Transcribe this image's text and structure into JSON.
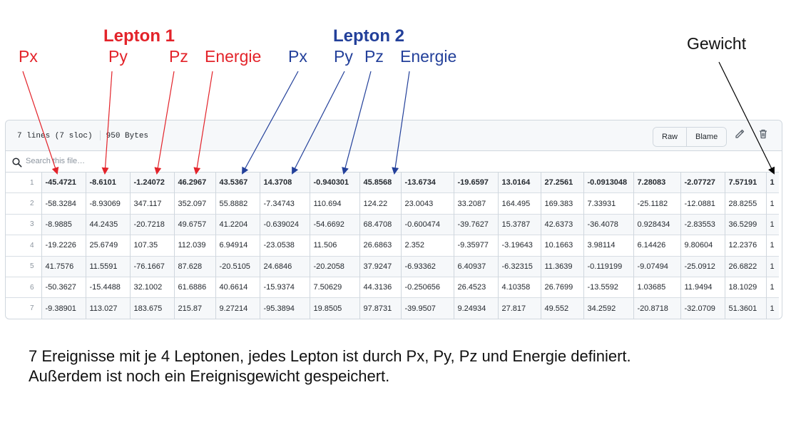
{
  "annotations": {
    "lepton1_title": "Lepton 1",
    "lepton2_title": "Lepton 2",
    "weight_label": "Gewicht",
    "lepton1_labels": [
      "Px",
      "Py",
      "Pz",
      "Energie"
    ],
    "lepton2_labels": [
      "Px",
      "Py",
      "Pz",
      "Energie"
    ],
    "colors": {
      "lepton1": "#e3232a",
      "lepton2": "#23409a",
      "weight": "#111111"
    }
  },
  "file_view": {
    "meta_lines": "7 lines (7 sloc)",
    "meta_size": "950 Bytes",
    "raw_label": "Raw",
    "blame_label": "Blame",
    "edit_icon": "pencil-icon",
    "delete_icon": "trash-icon",
    "search_placeholder": "Search this file…",
    "rows": [
      {
        "line": "1",
        "cells": [
          "-45.4721",
          "-8.6101",
          "-1.24072",
          "46.2967",
          "43.5367",
          "14.3708",
          "-0.940301",
          "45.8568",
          "-13.6734",
          "-19.6597",
          "13.0164",
          "27.2561",
          "-0.0913048",
          "7.28083",
          "-2.07727",
          "7.57191",
          "1"
        ]
      },
      {
        "line": "2",
        "cells": [
          "-58.3284",
          "-8.93069",
          "347.117",
          "352.097",
          "55.8882",
          "-7.34743",
          "110.694",
          "124.22",
          "23.0043",
          "33.2087",
          "164.495",
          "169.383",
          "7.33931",
          "-25.1182",
          "-12.0881",
          "28.8255",
          "1"
        ]
      },
      {
        "line": "3",
        "cells": [
          "-8.9885",
          "44.2435",
          "-20.7218",
          "49.6757",
          "41.2204",
          "-0.639024",
          "-54.6692",
          "68.4708",
          "-0.600474",
          "-39.7627",
          "15.3787",
          "42.6373",
          "-36.4078",
          "0.928434",
          "-2.83553",
          "36.5299",
          "1"
        ]
      },
      {
        "line": "4",
        "cells": [
          "-19.2226",
          "25.6749",
          "107.35",
          "112.039",
          "6.94914",
          "-23.0538",
          "11.506",
          "26.6863",
          "2.352",
          "-9.35977",
          "-3.19643",
          "10.1663",
          "3.98114",
          "6.14426",
          "9.80604",
          "12.2376",
          "1"
        ]
      },
      {
        "line": "5",
        "cells": [
          "41.7576",
          "11.5591",
          "-76.1667",
          "87.628",
          "-20.5105",
          "24.6846",
          "-20.2058",
          "37.9247",
          "-6.93362",
          "6.40937",
          "-6.32315",
          "11.3639",
          "-0.119199",
          "-9.07494",
          "-25.0912",
          "26.6822",
          "1"
        ]
      },
      {
        "line": "6",
        "cells": [
          "-50.3627",
          "-15.4488",
          "32.1002",
          "61.6886",
          "40.6614",
          "-15.9374",
          "7.50629",
          "44.3136",
          "-0.250656",
          "26.4523",
          "4.10358",
          "26.7699",
          "-13.5592",
          "1.03685",
          "11.9494",
          "18.1029",
          "1"
        ]
      },
      {
        "line": "7",
        "cells": [
          "-9.38901",
          "113.027",
          "183.675",
          "215.87",
          "9.27214",
          "-95.3894",
          "19.8505",
          "97.8731",
          "-39.9507",
          "9.24934",
          "27.817",
          "49.552",
          "34.2592",
          "-20.8718",
          "-32.0709",
          "51.3601",
          "1"
        ]
      }
    ]
  },
  "caption": {
    "line1": "7 Ereignisse mit je 4 Leptonen, jedes Lepton ist durch Px, Py, Pz und Energie definiert.",
    "line2": "Außerdem ist noch ein Ereignisgewicht gespeichert."
  }
}
